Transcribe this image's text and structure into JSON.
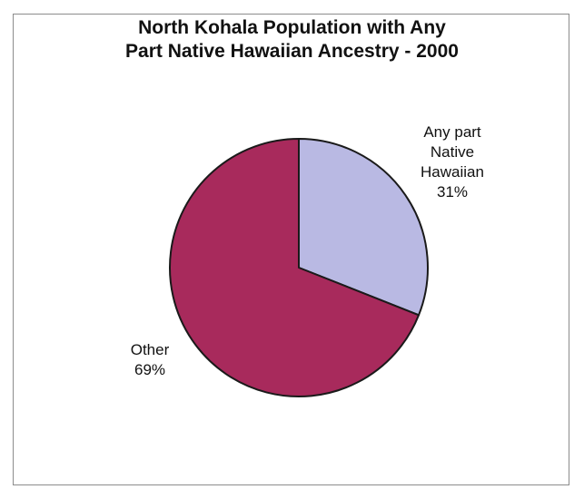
{
  "chart_data": {
    "type": "pie",
    "title": [
      "North Kohala Population with Any",
      "Part Native Hawaiian Ancestry - 2000"
    ],
    "slices": [
      {
        "label_lines": [
          "Any part",
          "Native",
          "Hawaiian"
        ],
        "percent_label": "31%",
        "value": 31,
        "color": "#b9b9e3"
      },
      {
        "label_lines": [
          "Other"
        ],
        "percent_label": "69%",
        "value": 69,
        "color": "#a82a5c"
      }
    ],
    "start_angle": "12 o'clock",
    "direction": "clockwise",
    "legend": "none"
  }
}
